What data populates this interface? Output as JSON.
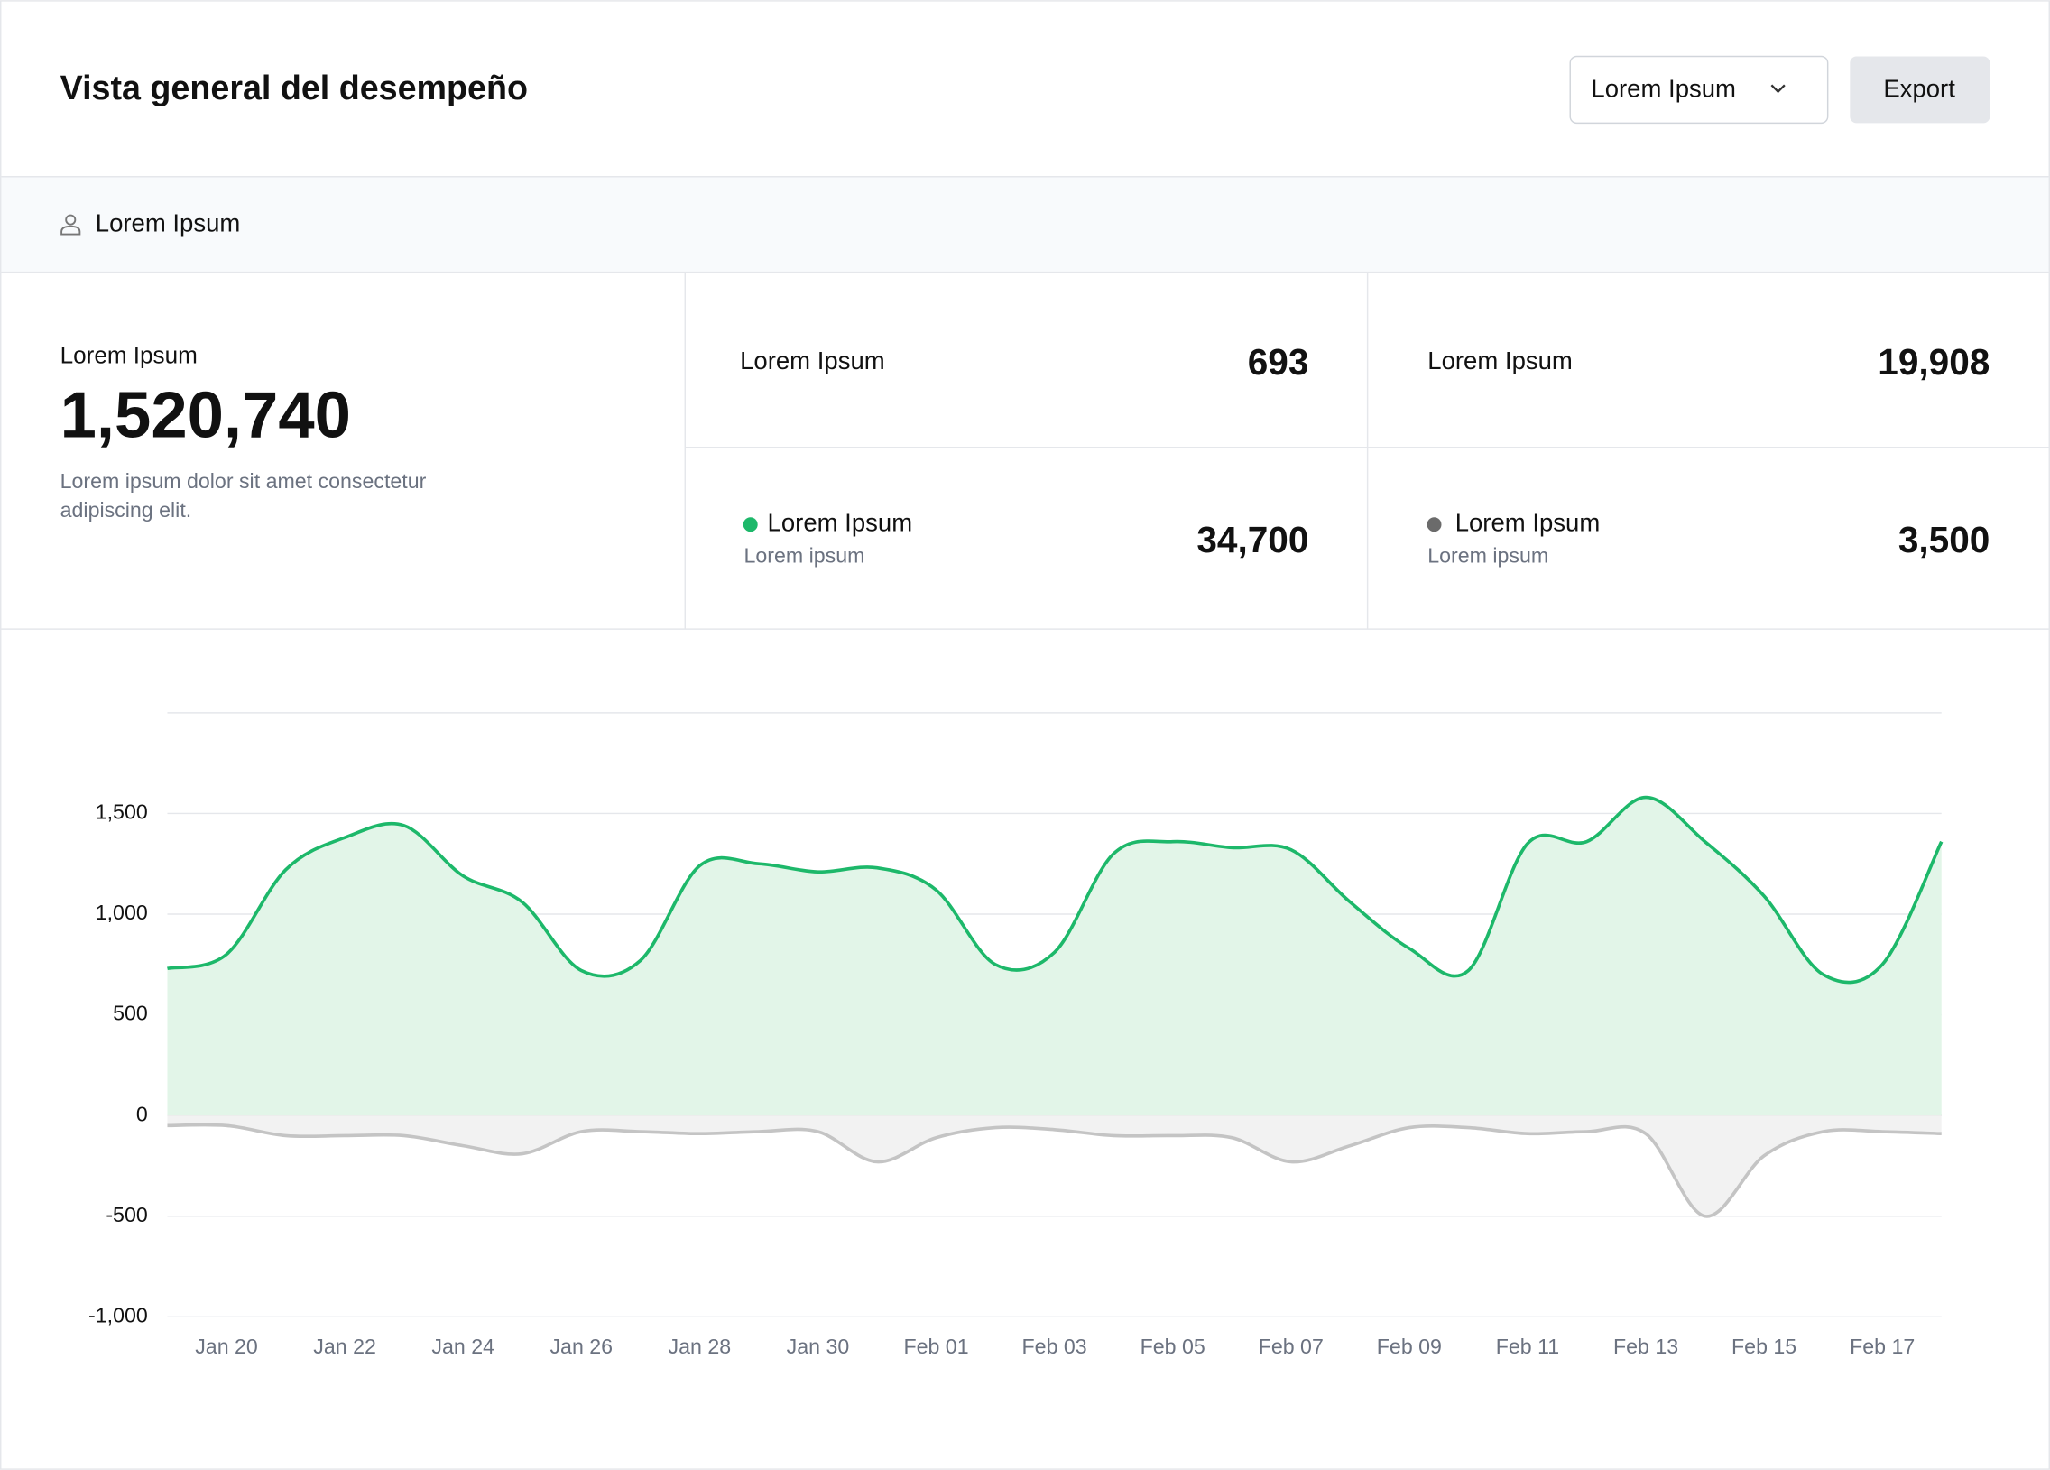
{
  "header": {
    "title": "Vista general del desempeño",
    "dropdown": "Lorem Ipsum",
    "export": "Export"
  },
  "section": {
    "label": "Lorem Ipsum"
  },
  "summary": {
    "label": "Lorem Ipsum",
    "value": "1,520,740",
    "description": [
      "Lorem ipsum dolor sit amet consectetur",
      "adipiscing elit."
    ]
  },
  "stats": [
    {
      "label": "Lorem Ipsum",
      "value": "693"
    },
    {
      "label": "Lorem Ipsum",
      "value": "19,908"
    },
    {
      "sublabel": "Lorem ipsum",
      "value": "34,700"
    },
    {
      "sublabel": "Lorem ipsum",
      "value": "3,500"
    }
  ],
  "chart_data": {
    "type": "area",
    "categories": [
      null,
      "Jan 20",
      null,
      "Jan 22",
      null,
      "Jan 24",
      null,
      "Jan 26",
      null,
      "Jan 28",
      null,
      "Jan 30",
      null,
      "Feb 01",
      null,
      "Feb 03",
      null,
      "Feb 05",
      null,
      "Feb 07",
      null,
      "Feb 09",
      null,
      "Feb 11",
      null,
      "Feb 13",
      null,
      "Feb 15",
      null,
      "Feb 17",
      null
    ],
    "series": [
      {
        "name": "Lorem Ipsum",
        "color": "#1db86a",
        "fill": "#e2f5e8",
        "values": [
          730,
          800,
          1220,
          1380,
          1440,
          1190,
          1060,
          720,
          770,
          1240,
          1250,
          1210,
          1230,
          1120,
          750,
          810,
          1300,
          1360,
          1330,
          1320,
          1060,
          830,
          720,
          1350,
          1360,
          1580,
          1360,
          1090,
          700,
          750,
          1360
        ]
      },
      {
        "name": "Lorem Ipsum",
        "color": "#c4c4c4",
        "fill": "#f2f2f2",
        "values": [
          -50,
          -50,
          -100,
          -100,
          -100,
          -150,
          -190,
          -80,
          -80,
          -90,
          -80,
          -80,
          -230,
          -110,
          -60,
          -70,
          -100,
          -100,
          -110,
          -230,
          -150,
          -60,
          -60,
          -90,
          -80,
          -90,
          -500,
          -200,
          -80,
          -80,
          -90
        ]
      }
    ],
    "ylim": [
      -1000,
      2000
    ],
    "yticks": [
      {
        "value": -1000,
        "label": "-1,000"
      },
      -500,
      0,
      500,
      {
        "value": 1000,
        "label": "1,000"
      },
      {
        "value": 1500,
        "label": "1,500"
      }
    ],
    "grid": true
  }
}
